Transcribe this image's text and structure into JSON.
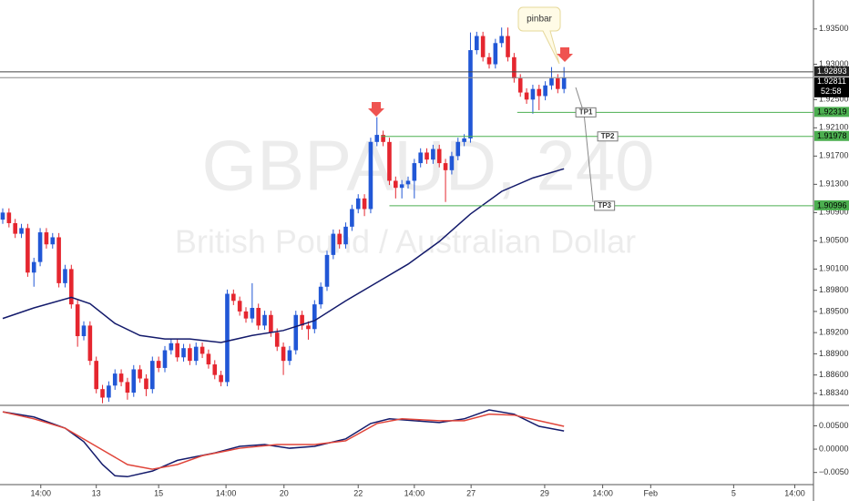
{
  "chart_data": {
    "type": "candlestick",
    "watermark": {
      "symbol": "GBPAUD, 240",
      "description": "British Pound / Australian Dollar"
    },
    "annotation": "pinbar",
    "countdown": "52:58",
    "up_color": "#2157d6",
    "down_color": "#e5262f",
    "ylim": [
      1.8817,
      1.9391
    ],
    "yticks": [
      {
        "value": 1.935,
        "label": "1.93500"
      },
      {
        "value": 1.93,
        "label": "1.93000"
      },
      {
        "value": 1.925,
        "label": "1.92500"
      },
      {
        "value": 1.921,
        "label": "1.92100"
      },
      {
        "value": 1.917,
        "label": "1.91700"
      },
      {
        "value": 1.913,
        "label": "1.91300"
      },
      {
        "value": 1.909,
        "label": "1.90900"
      },
      {
        "value": 1.905,
        "label": "1.90500"
      },
      {
        "value": 1.901,
        "label": "1.90100"
      },
      {
        "value": 1.898,
        "label": "1.89800"
      },
      {
        "value": 1.895,
        "label": "1.89500"
      },
      {
        "value": 1.892,
        "label": "1.89200"
      },
      {
        "value": 1.889,
        "label": "1.88900"
      },
      {
        "value": 1.886,
        "label": "1.88600"
      },
      {
        "value": 1.8834,
        "label": "1.88340"
      }
    ],
    "xlim": [
      0,
      130
    ],
    "xticks": [
      {
        "value": 6.1,
        "label": "14:00"
      },
      {
        "value": 15,
        "label": "13"
      },
      {
        "value": 25,
        "label": "15"
      },
      {
        "value": 35.8,
        "label": "14:00"
      },
      {
        "value": 45.1,
        "label": "20"
      },
      {
        "value": 57,
        "label": "22"
      },
      {
        "value": 66,
        "label": "14:00"
      },
      {
        "value": 75.1,
        "label": "27"
      },
      {
        "value": 86.9,
        "label": "29"
      },
      {
        "value": 96.2,
        "label": "14:00"
      },
      {
        "value": 103.9,
        "label": "Feb"
      },
      {
        "value": 117.2,
        "label": "5"
      },
      {
        "value": 127,
        "label": "14:00"
      }
    ],
    "ohlc": [
      [
        1.908,
        1.9096,
        1.9074,
        1.909
      ],
      [
        1.909,
        1.9096,
        1.9069,
        1.9075
      ],
      [
        1.9075,
        1.9081,
        1.9054,
        1.906
      ],
      [
        1.906,
        1.9074,
        1.9054,
        1.9068
      ],
      [
        1.9068,
        1.9074,
        1.8999,
        1.9005
      ],
      [
        1.9005,
        1.9026,
        1.8985,
        1.902
      ],
      [
        1.902,
        1.9068,
        1.9014,
        1.9062
      ],
      [
        1.9062,
        1.9068,
        1.9039,
        1.9045
      ],
      [
        1.9045,
        1.9061,
        1.9039,
        1.9055
      ],
      [
        1.9055,
        1.9061,
        1.8984,
        1.899
      ],
      [
        1.899,
        1.9016,
        1.8984,
        1.901
      ],
      [
        1.901,
        1.9016,
        1.8954,
        1.896
      ],
      [
        1.896,
        1.8966,
        1.89,
        1.8915
      ],
      [
        1.8915,
        1.8936,
        1.8909,
        1.893
      ],
      [
        1.893,
        1.8936,
        1.8874,
        1.888
      ],
      [
        1.888,
        1.8886,
        1.8834,
        1.884
      ],
      [
        1.884,
        1.8846,
        1.882,
        1.8828
      ],
      [
        1.8828,
        1.8851,
        1.8822,
        1.8845
      ],
      [
        1.8845,
        1.8868,
        1.8839,
        1.8862
      ],
      [
        1.8862,
        1.8868,
        1.8844,
        1.885
      ],
      [
        1.885,
        1.8856,
        1.8825,
        1.8835
      ],
      [
        1.8835,
        1.8874,
        1.8829,
        1.8868
      ],
      [
        1.8868,
        1.8874,
        1.8849,
        1.8855
      ],
      [
        1.8855,
        1.8861,
        1.883,
        1.884
      ],
      [
        1.884,
        1.8886,
        1.8834,
        1.888
      ],
      [
        1.888,
        1.8886,
        1.8864,
        1.887
      ],
      [
        1.887,
        1.8901,
        1.8864,
        1.8895
      ],
      [
        1.8895,
        1.8911,
        1.8889,
        1.8905
      ],
      [
        1.8905,
        1.8911,
        1.8879,
        1.8885
      ],
      [
        1.8885,
        1.8904,
        1.8879,
        1.8898
      ],
      [
        1.8898,
        1.8904,
        1.8874,
        1.888
      ],
      [
        1.888,
        1.8906,
        1.8874,
        1.89
      ],
      [
        1.89,
        1.8906,
        1.8884,
        1.889
      ],
      [
        1.889,
        1.8896,
        1.8869,
        1.8875
      ],
      [
        1.8875,
        1.8881,
        1.8854,
        1.886
      ],
      [
        1.886,
        1.8866,
        1.8844,
        1.885
      ],
      [
        1.885,
        1.8981,
        1.8844,
        1.8975
      ],
      [
        1.8975,
        1.8981,
        1.8959,
        1.8965
      ],
      [
        1.8965,
        1.8971,
        1.8944,
        1.895
      ],
      [
        1.895,
        1.8956,
        1.8934,
        1.894
      ],
      [
        1.894,
        1.899,
        1.8934,
        1.8955
      ],
      [
        1.8955,
        1.8961,
        1.8924,
        1.893
      ],
      [
        1.893,
        1.8951,
        1.8924,
        1.8945
      ],
      [
        1.8945,
        1.8951,
        1.8914,
        1.892
      ],
      [
        1.892,
        1.8926,
        1.8894,
        1.89
      ],
      [
        1.89,
        1.8906,
        1.886,
        1.888
      ],
      [
        1.888,
        1.8901,
        1.8874,
        1.8895
      ],
      [
        1.8895,
        1.8951,
        1.8889,
        1.8945
      ],
      [
        1.8945,
        1.8951,
        1.8924,
        1.893
      ],
      [
        1.893,
        1.8936,
        1.891,
        1.8925
      ],
      [
        1.8925,
        1.8966,
        1.8919,
        1.896
      ],
      [
        1.896,
        1.8991,
        1.8954,
        1.8985
      ],
      [
        1.8985,
        1.9036,
        1.8979,
        1.903
      ],
      [
        1.903,
        1.9066,
        1.9024,
        1.906
      ],
      [
        1.906,
        1.9066,
        1.9039,
        1.9045
      ],
      [
        1.9045,
        1.9076,
        1.9039,
        1.907
      ],
      [
        1.907,
        1.9101,
        1.9064,
        1.9095
      ],
      [
        1.9095,
        1.9116,
        1.9089,
        1.911
      ],
      [
        1.911,
        1.9116,
        1.9085,
        1.9095
      ],
      [
        1.9095,
        1.9196,
        1.9089,
        1.919
      ],
      [
        1.919,
        1.9225,
        1.9184,
        1.92
      ],
      [
        1.92,
        1.9206,
        1.9184,
        1.919
      ],
      [
        1.919,
        1.9196,
        1.9129,
        1.9135
      ],
      [
        1.9135,
        1.9141,
        1.911,
        1.9125
      ],
      [
        1.9125,
        1.9136,
        1.911,
        1.913
      ],
      [
        1.913,
        1.9141,
        1.9124,
        1.9135
      ],
      [
        1.9135,
        1.9166,
        1.911,
        1.916
      ],
      [
        1.916,
        1.9181,
        1.9154,
        1.9175
      ],
      [
        1.9175,
        1.9181,
        1.9159,
        1.9165
      ],
      [
        1.9165,
        1.9186,
        1.9159,
        1.918
      ],
      [
        1.918,
        1.9186,
        1.9154,
        1.916
      ],
      [
        1.916,
        1.9166,
        1.9105,
        1.915
      ],
      [
        1.915,
        1.9176,
        1.9144,
        1.917
      ],
      [
        1.917,
        1.9196,
        1.9164,
        1.919
      ],
      [
        1.919,
        1.9201,
        1.9184,
        1.9195
      ],
      [
        1.9195,
        1.9345,
        1.9189,
        1.932
      ],
      [
        1.932,
        1.9346,
        1.9314,
        1.934
      ],
      [
        1.934,
        1.9346,
        1.9304,
        1.931
      ],
      [
        1.931,
        1.9316,
        1.9294,
        1.93
      ],
      [
        1.93,
        1.9336,
        1.9294,
        1.933
      ],
      [
        1.933,
        1.9352,
        1.9324,
        1.934
      ],
      [
        1.934,
        1.9352,
        1.9304,
        1.931
      ],
      [
        1.931,
        1.9316,
        1.9274,
        1.928
      ],
      [
        1.928,
        1.9286,
        1.9254,
        1.926
      ],
      [
        1.926,
        1.9266,
        1.9244,
        1.925
      ],
      [
        1.925,
        1.9271,
        1.923,
        1.9265
      ],
      [
        1.9265,
        1.9271,
        1.9235,
        1.9255
      ],
      [
        1.9255,
        1.9276,
        1.9249,
        1.927
      ],
      [
        1.927,
        1.9296,
        1.9264,
        1.928
      ],
      [
        1.928,
        1.9286,
        1.9259,
        1.9265
      ],
      [
        1.9265,
        1.9296,
        1.9259,
        1.9281
      ]
    ],
    "ma": {
      "color": "#131a6b",
      "x": [
        0,
        5,
        11,
        14,
        18,
        22,
        26,
        30,
        35,
        40,
        45,
        50,
        55,
        60,
        65,
        70,
        75,
        80,
        85,
        90
      ],
      "values": [
        1.894,
        1.8955,
        1.897,
        1.8961,
        1.8933,
        1.8916,
        1.8911,
        1.8911,
        1.8906,
        1.8916,
        1.8923,
        1.8937,
        1.8965,
        1.8991,
        1.9017,
        1.9049,
        1.9088,
        1.912,
        1.9139,
        1.9152
      ]
    },
    "levels": [
      {
        "value": 1.92893,
        "label": "1.92893",
        "color": "#444444"
      },
      {
        "value": 1.92811,
        "label": "1.92811",
        "color": "#888888"
      }
    ],
    "targets": [
      {
        "name": "TP1",
        "value": 1.92319,
        "label": "1.92319",
        "color": "#4caf50"
      },
      {
        "name": "TP2",
        "value": 1.91978,
        "label": "1.91978",
        "color": "#4caf50"
      },
      {
        "name": "TP3",
        "value": 1.90996,
        "label": "1.90996",
        "color": "#4caf50"
      }
    ],
    "indicator": {
      "ylim": [
        -0.0076,
        0.009
      ],
      "yticks": [
        {
          "value": 0.005,
          "label": "0.00500"
        },
        {
          "value": 0,
          "label": "0.00000"
        },
        {
          "value": -0.005,
          "label": "−0.00500"
        }
      ],
      "series": [
        {
          "color": "#131a6b",
          "x": [
            0,
            5,
            10,
            13,
            16,
            18,
            20,
            24,
            28,
            34,
            38,
            42,
            46,
            50,
            55,
            59,
            62,
            66,
            70,
            74,
            78,
            82,
            86,
            90
          ],
          "values": [
            0.008,
            0.0069,
            0.0045,
            0.0016,
            -0.0033,
            -0.0057,
            -0.0059,
            -0.0047,
            -0.0024,
            -0.0008,
            0.0006,
            0.001,
            0.0002,
            0.0006,
            0.0022,
            0.0055,
            0.0065,
            0.0061,
            0.0057,
            0.0065,
            0.0084,
            0.0075,
            0.0049,
            0.0039
          ]
        },
        {
          "color": "#e0453a",
          "x": [
            0,
            5,
            10,
            15,
            20,
            24,
            28,
            32,
            38,
            44,
            50,
            55,
            60,
            64,
            70,
            74,
            78,
            82,
            86,
            90
          ],
          "values": [
            0.008,
            0.0065,
            0.0045,
            0.0006,
            -0.0033,
            -0.0043,
            -0.0033,
            -0.0014,
            0.0002,
            0.001,
            0.001,
            0.0018,
            0.0055,
            0.0065,
            0.0061,
            0.0061,
            0.0075,
            0.0073,
            0.0061,
            0.0049
          ]
        }
      ]
    }
  }
}
